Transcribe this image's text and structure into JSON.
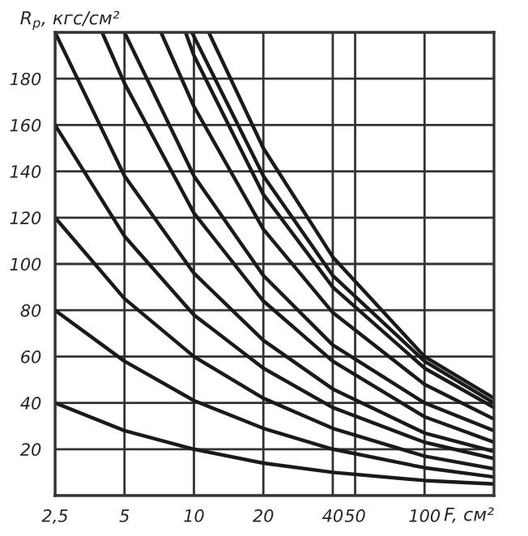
{
  "chart_data": {
    "type": "line",
    "xlabel": "F, см²",
    "ylabel": "R$_{p}$, кгс/см²",
    "log": "x",
    "xlim": [
      2.5,
      200
    ],
    "ylim": [
      0,
      200
    ],
    "xticks": [
      {
        "value": 2.5,
        "label": "2,5"
      },
      5,
      10,
      20,
      40,
      50,
      100
    ],
    "yticks": [
      20,
      40,
      60,
      80,
      100,
      120,
      140,
      160,
      180
    ],
    "grid": true,
    "marker": "none",
    "line_style": "solid",
    "series": [
      {
        "color": "#1a1a1a",
        "x": [
          2.5,
          5,
          10,
          20,
          40,
          100,
          200
        ],
        "values": [
          40,
          28,
          20,
          14,
          10,
          6.5,
          5
        ]
      },
      {
        "color": "#1a1a1a",
        "x": [
          2.5,
          5,
          10,
          20,
          40,
          100,
          200
        ],
        "values": [
          80,
          58,
          41,
          29,
          20,
          12,
          8
        ]
      },
      {
        "color": "#1a1a1a",
        "x": [
          2.5,
          5,
          10,
          20,
          40,
          100,
          200
        ],
        "values": [
          120,
          85,
          60,
          42,
          29,
          17,
          11.5
        ]
      },
      {
        "color": "#1a1a1a",
        "x": [
          2.5,
          5,
          10,
          20,
          40,
          100,
          200
        ],
        "values": [
          160,
          112,
          78,
          55,
          38,
          23,
          16
        ]
      },
      {
        "color": "#1a1a1a",
        "x": [
          2.5,
          5,
          10,
          20,
          40,
          100,
          200
        ],
        "values": [
          200,
          138,
          96,
          67,
          46,
          27,
          19
        ]
      },
      {
        "color": "#1a1a1a",
        "x": [
          4,
          5,
          10,
          20,
          40,
          100,
          200
        ],
        "values": [
          200,
          178,
          122,
          84,
          58,
          34,
          23
        ]
      },
      {
        "color": "#1a1a1a",
        "x": [
          5,
          10,
          20,
          40,
          100,
          200
        ],
        "values": [
          200,
          138,
          95,
          65,
          40,
          28
        ]
      },
      {
        "color": "#1a1a1a",
        "x": [
          7.2,
          10,
          20,
          40,
          100,
          200
        ],
        "values": [
          200,
          168,
          115,
          79,
          48,
          33
        ]
      },
      {
        "color": "#1a1a1a",
        "x": [
          9.2,
          10,
          20,
          40,
          100,
          200
        ],
        "values": [
          200,
          190,
          130,
          90,
          55,
          38
        ]
      },
      {
        "color": "#1a1a1a",
        "x": [
          9.8,
          20,
          40,
          100,
          200
        ],
        "values": [
          200,
          138,
          95,
          58,
          40
        ]
      },
      {
        "color": "#1a1a1a",
        "x": [
          11.6,
          20,
          40,
          100,
          200
        ],
        "values": [
          200,
          150,
          103,
          60,
          42
        ]
      }
    ]
  }
}
